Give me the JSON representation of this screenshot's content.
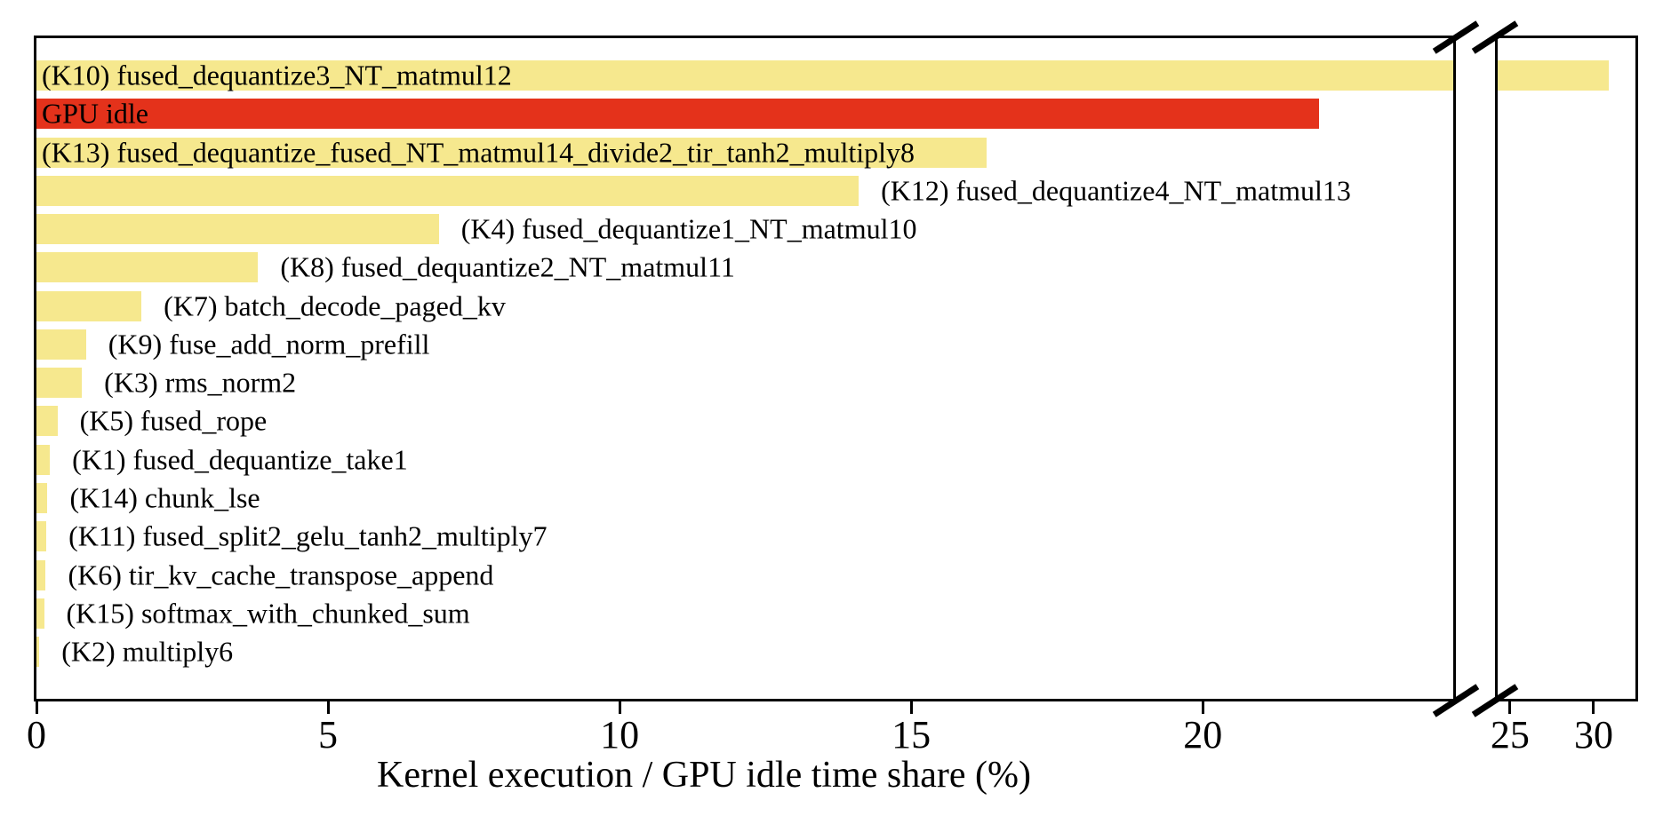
{
  "chart_data": {
    "type": "bar",
    "orientation": "horizontal",
    "title": "",
    "xlabel": "Kernel execution / GPU idle time share (%)",
    "ylabel": "",
    "legend": null,
    "grid": false,
    "x_axis": {
      "broken": true,
      "left_segment": {
        "min": 0,
        "max": 24.34,
        "ticks": [
          0,
          5,
          10,
          15,
          20
        ]
      },
      "right_segment": {
        "min": 24.1,
        "max": 32.66,
        "ticks": [
          25,
          30
        ]
      }
    },
    "colors": {
      "kernel_bar": "#f6e88e",
      "idle_bar": "#e4321b",
      "axis": "#000000",
      "text": "#000000"
    },
    "bars": [
      {
        "id": "K10",
        "label": "(K10) fused_dequantize3_NT_matmul12",
        "value": 30.9,
        "color": "#f6e88e",
        "label_inside": true
      },
      {
        "id": "GPU-idle",
        "label": "GPU idle",
        "value": 22.0,
        "color": "#e4321b",
        "label_inside": true
      },
      {
        "id": "K13",
        "label": "(K13) fused_dequantize_fused_NT_matmul14_divide2_tir_tanh2_multiply8",
        "value": 16.3,
        "color": "#f6e88e",
        "label_inside": true
      },
      {
        "id": "K12",
        "label": "(K12) fused_dequantize4_NT_matmul13",
        "value": 14.1,
        "color": "#f6e88e",
        "label_inside": false
      },
      {
        "id": "K4",
        "label": "(K4) fused_dequantize1_NT_matmul10",
        "value": 6.9,
        "color": "#f6e88e",
        "label_inside": false
      },
      {
        "id": "K8",
        "label": "(K8) fused_dequantize2_NT_matmul11",
        "value": 3.8,
        "color": "#f6e88e",
        "label_inside": false
      },
      {
        "id": "K7",
        "label": "(K7) batch_decode_paged_kv",
        "value": 1.8,
        "color": "#f6e88e",
        "label_inside": false
      },
      {
        "id": "K9",
        "label": "(K9) fuse_add_norm_prefill",
        "value": 0.85,
        "color": "#f6e88e",
        "label_inside": false
      },
      {
        "id": "K3",
        "label": "(K3) rms_norm2",
        "value": 0.78,
        "color": "#f6e88e",
        "label_inside": false
      },
      {
        "id": "K5",
        "label": "(K5) fused_rope",
        "value": 0.36,
        "color": "#f6e88e",
        "label_inside": false
      },
      {
        "id": "K1",
        "label": "(K1) fused_dequantize_take1",
        "value": 0.23,
        "color": "#f6e88e",
        "label_inside": false
      },
      {
        "id": "K14",
        "label": "(K14) chunk_lse",
        "value": 0.19,
        "color": "#f6e88e",
        "label_inside": false
      },
      {
        "id": "K11",
        "label": "(K11) fused_split2_gelu_tanh2_multiply7",
        "value": 0.17,
        "color": "#f6e88e",
        "label_inside": false
      },
      {
        "id": "K6",
        "label": "(K6) tir_kv_cache_transpose_append",
        "value": 0.16,
        "color": "#f6e88e",
        "label_inside": false
      },
      {
        "id": "K15",
        "label": "(K15) softmax_with_chunked_sum",
        "value": 0.13,
        "color": "#f6e88e",
        "label_inside": false
      },
      {
        "id": "K2",
        "label": "(K2) multiply6",
        "value": 0.05,
        "color": "#f6e88e",
        "label_inside": false
      }
    ]
  }
}
